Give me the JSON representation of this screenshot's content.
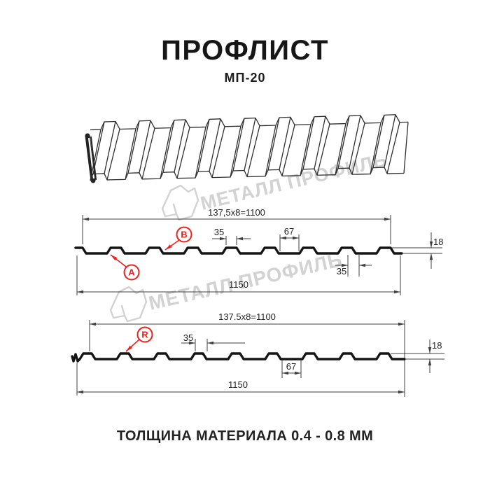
{
  "page": {
    "title": "ПРОФЛИСТ",
    "subtitle": "МП-20",
    "footer": "ТОЛЩИНА МАТЕРИАЛА 0.4 - 0.8 ММ"
  },
  "watermark": {
    "text": "МЕТАЛЛ ПРОФИЛЬ",
    "color": "#d2d2d2"
  },
  "colors": {
    "line": "#151515",
    "dimension": "#3f3f3f",
    "accent_red": "#e8231d",
    "text": "#232323"
  },
  "section1": {
    "dim_width_top": "137,5x8=1100",
    "dim_crest": "35",
    "dim_valley": "67",
    "dim_height": "18",
    "dim_base": "35",
    "dim_total": "1150",
    "label_a": "А",
    "label_b": "В"
  },
  "section2": {
    "dim_width_top": "137.5x8=1100",
    "dim_crest": "35",
    "dim_valley": "67",
    "dim_height": "18",
    "dim_total": "1150",
    "label_r": "R"
  }
}
